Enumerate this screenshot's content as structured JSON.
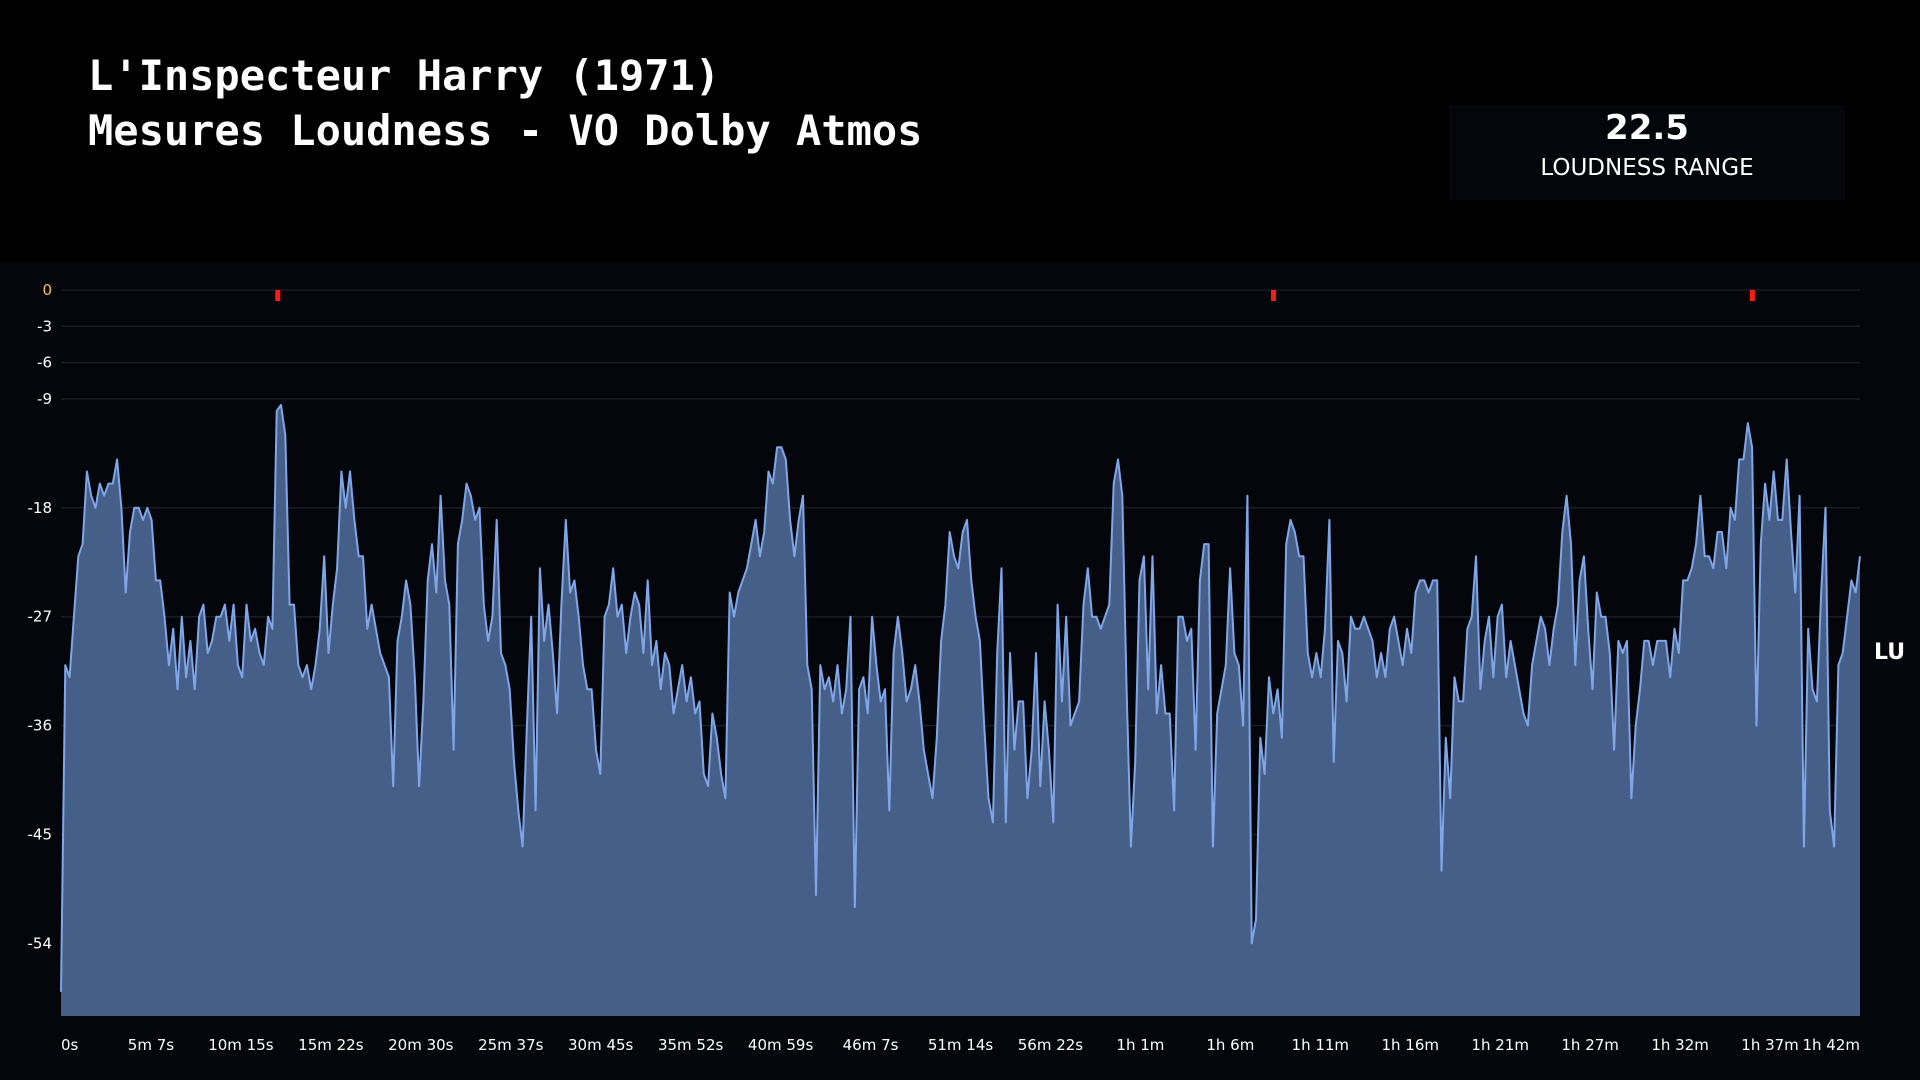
{
  "header": {
    "title_line1": "L'Inspecteur Harry (1971)",
    "title_line2": "Mesures Loudness - VO Dolby Atmos"
  },
  "stat": {
    "value": "22.5",
    "label": "LOUDNESS RANGE"
  },
  "chart_data": {
    "type": "area",
    "ylabel": "LU",
    "ylim": [
      -60,
      0
    ],
    "y_ticks": [
      0,
      -3,
      -6,
      -9,
      -18,
      -27,
      -36,
      -45,
      -54
    ],
    "y_tick_labels": [
      "0",
      "-3",
      "-6",
      "-9",
      "-18",
      "-27",
      "-36",
      "-45",
      "-54"
    ],
    "x_range_s": [
      0,
      6150
    ],
    "x_tick_labels": [
      "0s",
      "5m 7s",
      "10m 15s",
      "15m 22s",
      "20m 30s",
      "25m 37s",
      "30m 45s",
      "35m 52s",
      "40m 59s",
      "46m 7s",
      "51m 14s",
      "56m 22s",
      "1h 1m",
      "1h 6m",
      "1h 11m",
      "1h 16m",
      "1h 21m",
      "1h 27m",
      "1h 32m",
      "1h 37m",
      "1h 42m"
    ],
    "grid": true,
    "colors": {
      "line": "#7fa7e8",
      "fill": "#465f88",
      "marker": "#ff1a1a",
      "zero_label": "#f5c542",
      "grid": "#1a1c26"
    },
    "markers_s": [
      741,
      4145,
      5782
    ],
    "values": [
      -58,
      -31,
      -32,
      -27,
      -22,
      -21,
      -15,
      -17,
      -18,
      -16,
      -17,
      -16,
      -16,
      -14,
      -18,
      -25,
      -20,
      -18,
      -18,
      -19,
      -18,
      -19,
      -24,
      -24,
      -27,
      -31,
      -28,
      -33,
      -27,
      -32,
      -29,
      -33,
      -27,
      -26,
      -30,
      -29,
      -27,
      -27,
      -26,
      -29,
      -26,
      -31,
      -32,
      -26,
      -29,
      -28,
      -30,
      -31,
      -27,
      -28,
      -10,
      -9.5,
      -12,
      -26,
      -26,
      -31,
      -32,
      -31,
      -33,
      -31,
      -28,
      -22,
      -30,
      -26,
      -23,
      -15,
      -18,
      -15,
      -19,
      -22,
      -22,
      -28,
      -26,
      -28,
      -30,
      -31,
      -32,
      -41,
      -29,
      -27,
      -24,
      -26,
      -32,
      -41,
      -34,
      -24,
      -21,
      -25,
      -17,
      -24,
      -26,
      -38,
      -21,
      -19,
      -16,
      -17,
      -19,
      -18,
      -26,
      -29,
      -27,
      -19,
      -30,
      -31,
      -33,
      -39,
      -43,
      -46,
      -36,
      -27,
      -43,
      -23,
      -29,
      -26,
      -30,
      -35,
      -26,
      -19,
      -25,
      -24,
      -27,
      -31,
      -33,
      -33,
      -38,
      -40,
      -27,
      -26,
      -23,
      -27,
      -26,
      -30,
      -27,
      -25,
      -26,
      -30,
      -24,
      -31,
      -29,
      -33,
      -30,
      -31,
      -35,
      -33,
      -31,
      -34,
      -32,
      -35,
      -34,
      -40,
      -41,
      -35,
      -37,
      -40,
      -42,
      -25,
      -27,
      -25,
      -24,
      -23,
      -21,
      -19,
      -22,
      -20,
      -15,
      -16,
      -13,
      -13,
      -14,
      -19,
      -22,
      -19,
      -17,
      -31,
      -33,
      -50,
      -31,
      -33,
      -32,
      -34,
      -31,
      -35,
      -33,
      -27,
      -51,
      -33,
      -32,
      -35,
      -27,
      -31,
      -34,
      -33,
      -43,
      -30,
      -27,
      -30,
      -34,
      -33,
      -31,
      -34,
      -38,
      -40,
      -42,
      -37,
      -29,
      -26,
      -20,
      -22,
      -23,
      -20,
      -19,
      -24,
      -27,
      -29,
      -36,
      -42,
      -44,
      -30,
      -23,
      -44,
      -30,
      -38,
      -34,
      -34,
      -42,
      -38,
      -30,
      -41,
      -34,
      -38,
      -44,
      -26,
      -34,
      -27,
      -36,
      -35,
      -34,
      -26,
      -23,
      -27,
      -27,
      -28,
      -27,
      -26,
      -16,
      -14,
      -17,
      -33,
      -46,
      -39,
      -24,
      -22,
      -33,
      -22,
      -35,
      -31,
      -35,
      -35,
      -43,
      -27,
      -27,
      -29,
      -28,
      -38,
      -24,
      -21,
      -21,
      -46,
      -35,
      -33,
      -31,
      -23,
      -30,
      -31,
      -36,
      -17,
      -54,
      -52,
      -37,
      -40,
      -32,
      -35,
      -33,
      -37,
      -21,
      -19,
      -20,
      -22,
      -22,
      -30,
      -32,
      -30,
      -32,
      -28,
      -19,
      -39,
      -29,
      -30,
      -34,
      -27,
      -28,
      -28,
      -27,
      -28,
      -29,
      -32,
      -30,
      -32,
      -28,
      -27,
      -29,
      -31,
      -28,
      -30,
      -25,
      -24,
      -24,
      -25,
      -24,
      -24,
      -48,
      -37,
      -42,
      -32,
      -34,
      -34,
      -28,
      -27,
      -22,
      -33,
      -29,
      -27,
      -32,
      -27,
      -26,
      -32,
      -29,
      -31,
      -33,
      -35,
      -36,
      -31,
      -29,
      -27,
      -28,
      -31,
      -28,
      -26,
      -20,
      -17,
      -21,
      -31,
      -24,
      -22,
      -28,
      -33,
      -25,
      -27,
      -27,
      -30,
      -38,
      -29,
      -30,
      -29,
      -42,
      -36,
      -33,
      -29,
      -29,
      -31,
      -29,
      -29,
      -29,
      -32,
      -28,
      -30,
      -24,
      -24,
      -23,
      -21,
      -17,
      -22,
      -22,
      -23,
      -20,
      -20,
      -23,
      -18,
      -19,
      -14,
      -14,
      -11,
      -13,
      -36,
      -21,
      -16,
      -19,
      -15,
      -19,
      -19,
      -14,
      -20,
      -25,
      -17,
      -46,
      -28,
      -33,
      -34,
      -25,
      -18,
      -43,
      -46,
      -31,
      -30,
      -27,
      -24,
      -25,
      -22
    ]
  }
}
